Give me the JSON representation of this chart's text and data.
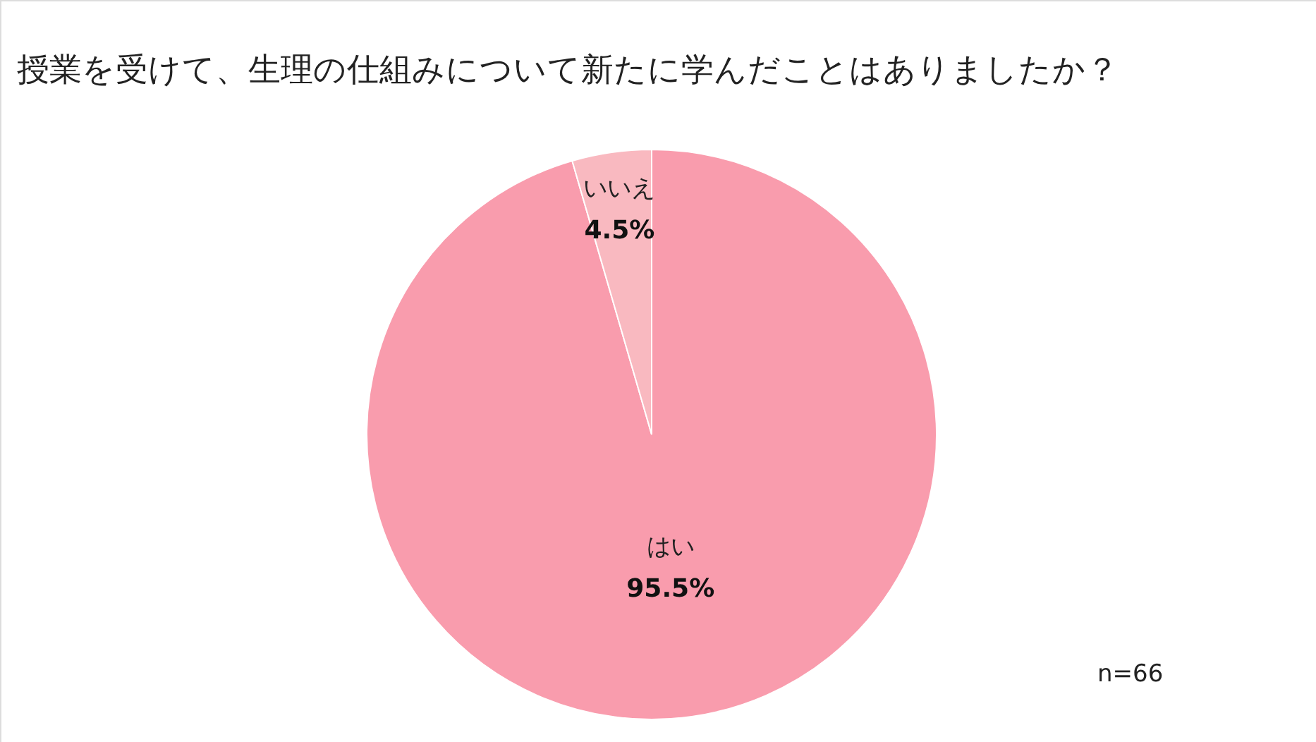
{
  "chart_data": {
    "type": "pie",
    "title": "授業を受けて、生理の仕組みについて新たに学んだことはありましたか？",
    "categories": [
      "はい",
      "いいえ"
    ],
    "values": [
      95.5,
      4.5
    ],
    "value_labels": [
      "95.5%",
      "4.5%"
    ],
    "colors": [
      "#f99cad",
      "#f9b9c0"
    ],
    "annotations": [
      "n=66"
    ]
  }
}
